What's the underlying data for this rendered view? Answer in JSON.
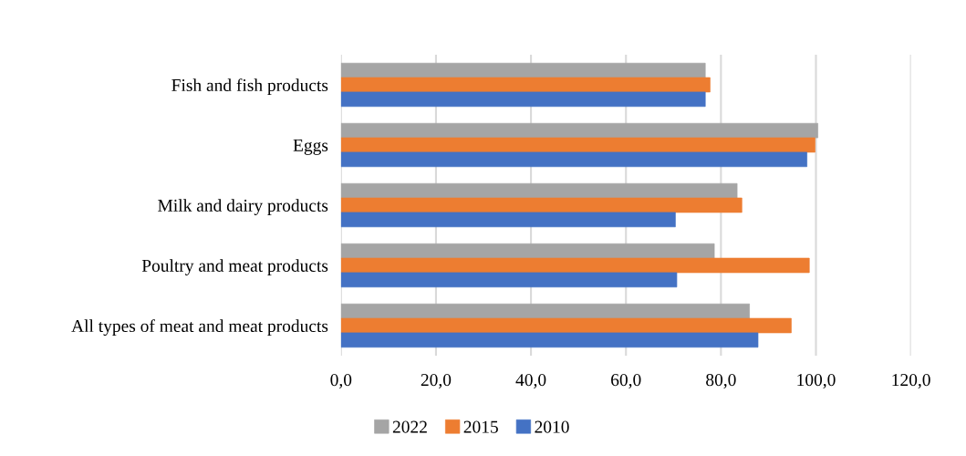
{
  "chart_data": {
    "type": "bar",
    "orientation": "horizontal",
    "categories": [
      "Fish and fish products",
      "Eggs",
      "Milk and dairy products",
      "Poultry and meat products",
      "All types of meat and meat products"
    ],
    "series": [
      {
        "name": "2022",
        "color": "#a5a5a5",
        "values": [
          76.7,
          100.4,
          83.4,
          78.6,
          86.0
        ]
      },
      {
        "name": "2015",
        "color": "#ed7d31",
        "values": [
          77.7,
          99.8,
          84.4,
          98.6,
          94.8
        ]
      },
      {
        "name": "2010",
        "color": "#4472c4",
        "values": [
          76.7,
          98.1,
          70.4,
          70.7,
          87.8
        ]
      }
    ],
    "xlim": [
      0,
      120
    ],
    "xticks": [
      {
        "value": 0,
        "label": "0,0"
      },
      {
        "value": 20,
        "label": "20,0"
      },
      {
        "value": 40,
        "label": "40,0"
      },
      {
        "value": 60,
        "label": "60,0"
      },
      {
        "value": 80,
        "label": "80,0"
      },
      {
        "value": 100,
        "label": "100,0"
      },
      {
        "value": 120,
        "label": "120,0"
      }
    ],
    "grid": "x",
    "legend": "bottom"
  }
}
